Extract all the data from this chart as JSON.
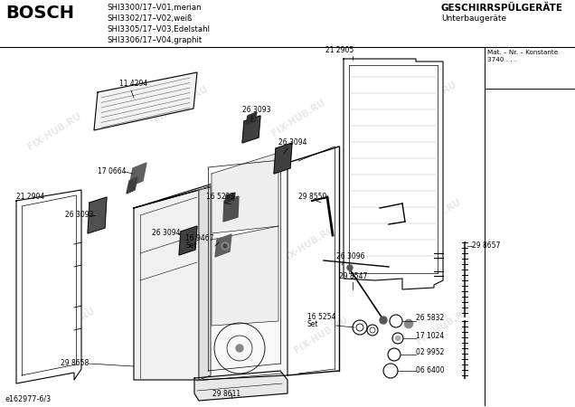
{
  "bg_color": "#ffffff",
  "title_bosch": "BOSCH",
  "header_models": "SHI3300/17–V01,merian\nSHI3302/17–V02,weiß\nSHI3305/17–V03,Edelstahl\nSHI3306/17–V04,graphit",
  "header_right1": "GESCHIRRSPÜLGERÄTE",
  "header_right2": "Unterbaugeräte",
  "mat_label": "Mat. – Nr. – Konstante\n3740 . . .",
  "footer_label": "e162977-6/3",
  "watermark": "FIX-HUB.RU",
  "line_color": "#000000",
  "text_color": "#000000"
}
